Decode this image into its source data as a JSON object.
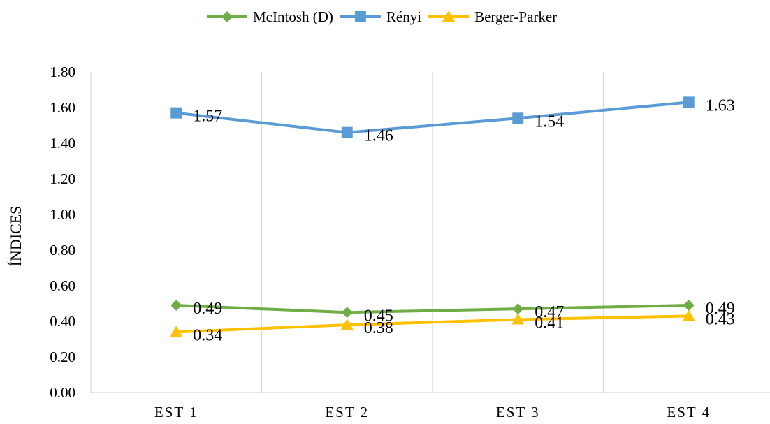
{
  "chart_data": {
    "type": "line",
    "title": "",
    "xlabel": "",
    "ylabel": "ÍNDICES",
    "categories": [
      "EST 1",
      "EST 2",
      "EST 3",
      "EST 4"
    ],
    "ylim": [
      0,
      1.8
    ],
    "yticks": [
      "0.00",
      "0.20",
      "0.40",
      "0.60",
      "0.80",
      "1.00",
      "1.20",
      "1.40",
      "1.60",
      "1.80"
    ],
    "grid": "vertical",
    "legend_position": "top",
    "series": [
      {
        "name": "McIntosh (D)",
        "values": [
          0.49,
          0.45,
          0.47,
          0.49
        ],
        "labels": [
          "0.49",
          "0.45",
          "0.47",
          "0.49"
        ],
        "color": "#70AD47",
        "marker": "diamond"
      },
      {
        "name": "Rényi",
        "values": [
          1.57,
          1.46,
          1.54,
          1.63
        ],
        "labels": [
          "1.57",
          "1.46",
          "1.54",
          "1.63"
        ],
        "color": "#5B9BD5",
        "marker": "square"
      },
      {
        "name": "Berger-Parker",
        "values": [
          0.34,
          0.38,
          0.41,
          0.43
        ],
        "labels": [
          "0.34",
          "0.38",
          "0.41",
          "0.43"
        ],
        "color": "#FFC000",
        "marker": "triangle"
      }
    ]
  }
}
